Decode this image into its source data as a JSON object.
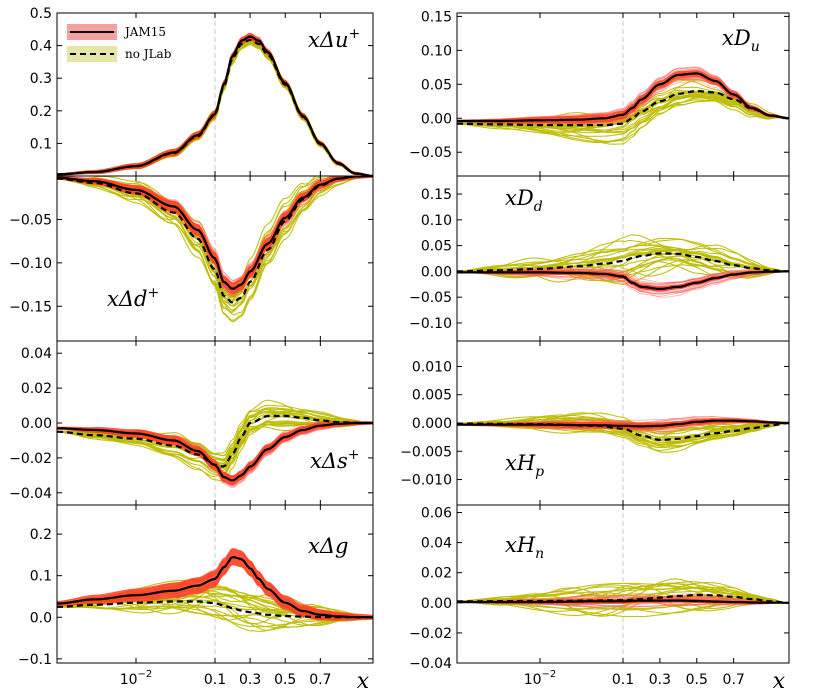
{
  "chart_data": {
    "type": "line",
    "x_axis": {
      "label": "x",
      "scale": "log-linear (log below 0.1, linear above)",
      "range": [
        0.001,
        1.0
      ],
      "ticks": [
        {
          "value": 0.01,
          "base": "10",
          "exponent": "−2"
        },
        {
          "value": 0.1,
          "label": "0.1"
        },
        {
          "value": 0.3,
          "label": "0.3"
        },
        {
          "value": 0.5,
          "label": "0.5"
        },
        {
          "value": 0.7,
          "label": "0.7"
        }
      ],
      "reference_line": 0.1
    },
    "legend": {
      "placement": "top-left of first panel",
      "entries": [
        {
          "label": "JAM15",
          "line_color": "#000000",
          "line_style": "solid",
          "band_color": "#f4a0a0"
        },
        {
          "label": "no JLab",
          "line_color": "#000000",
          "line_style": "dashed",
          "band_color": "#e6e6a6"
        }
      ]
    },
    "colors": {
      "jam15_replicas": "#ff5a5a",
      "jam15_band": "#ff4020",
      "nojlab_replicas": "#bbbb00"
    },
    "panels": [
      {
        "label": {
          "base": "xΔu",
          "sup": "+"
        },
        "column": 0,
        "row": 0,
        "ylim": [
          0.0,
          0.5
        ],
        "yticks": [
          {
            "v": 0.1,
            "t": "0.1"
          },
          {
            "v": 0.2,
            "t": "0.2"
          },
          {
            "v": 0.3,
            "t": "0.3"
          },
          {
            "v": 0.4,
            "t": "0.4"
          },
          {
            "v": 0.5,
            "t": "0.5"
          }
        ],
        "series": [
          {
            "name": "JAM15",
            "style": "solid",
            "x": [
              0.001,
              0.003,
              0.01,
              0.03,
              0.06,
              0.1,
              0.15,
              0.2,
              0.25,
              0.3,
              0.35,
              0.4,
              0.5,
              0.6,
              0.7,
              0.8,
              0.9,
              1.0
            ],
            "y": [
              0.005,
              0.012,
              0.03,
              0.072,
              0.125,
              0.19,
              0.28,
              0.37,
              0.415,
              0.428,
              0.415,
              0.38,
              0.285,
              0.185,
              0.1,
              0.04,
              0.008,
              0.0
            ]
          },
          {
            "name": "no JLab",
            "style": "dashed",
            "x": [
              0.001,
              0.003,
              0.01,
              0.03,
              0.06,
              0.1,
              0.15,
              0.2,
              0.25,
              0.3,
              0.35,
              0.4,
              0.5,
              0.6,
              0.7,
              0.8,
              0.9,
              1.0
            ],
            "y": [
              0.005,
              0.012,
              0.03,
              0.07,
              0.122,
              0.187,
              0.275,
              0.36,
              0.405,
              0.418,
              0.405,
              0.372,
              0.28,
              0.182,
              0.098,
              0.038,
              0.007,
              0.0
            ]
          }
        ],
        "band_halfwidth": 0.012,
        "replica_spread": 0.03
      },
      {
        "label": {
          "base": "xΔd",
          "sup": "+"
        },
        "column": 0,
        "row": 1,
        "ylim": [
          -0.19,
          0.0
        ],
        "yticks": [
          {
            "v": -0.05,
            "t": "−0.05"
          },
          {
            "v": -0.1,
            "t": "−0.10"
          },
          {
            "v": -0.15,
            "t": "−0.15"
          }
        ],
        "series": [
          {
            "name": "JAM15",
            "style": "solid",
            "x": [
              0.001,
              0.003,
              0.01,
              0.03,
              0.06,
              0.1,
              0.15,
              0.2,
              0.25,
              0.3,
              0.4,
              0.5,
              0.6,
              0.7,
              0.8,
              0.9,
              1.0
            ],
            "y": [
              -0.002,
              -0.006,
              -0.016,
              -0.035,
              -0.062,
              -0.095,
              -0.122,
              -0.13,
              -0.125,
              -0.11,
              -0.078,
              -0.048,
              -0.025,
              -0.01,
              -0.003,
              -0.0005,
              0.0
            ]
          },
          {
            "name": "no JLab",
            "style": "dashed",
            "x": [
              0.001,
              0.003,
              0.01,
              0.03,
              0.06,
              0.1,
              0.15,
              0.2,
              0.25,
              0.3,
              0.4,
              0.5,
              0.6,
              0.7,
              0.8,
              0.9,
              1.0
            ],
            "y": [
              -0.003,
              -0.008,
              -0.02,
              -0.042,
              -0.072,
              -0.108,
              -0.138,
              -0.146,
              -0.14,
              -0.122,
              -0.085,
              -0.052,
              -0.027,
              -0.011,
              -0.003,
              -0.0005,
              0.0
            ]
          }
        ],
        "band_halfwidth": 0.007,
        "replica_spread": 0.04
      },
      {
        "label": {
          "base": "xΔs",
          "sup": "+"
        },
        "column": 0,
        "row": 2,
        "ylim": [
          -0.047,
          0.047
        ],
        "yticks": [
          {
            "v": 0.04,
            "t": "0.04"
          },
          {
            "v": 0.02,
            "t": "0.02"
          },
          {
            "v": 0.0,
            "t": "0.00"
          },
          {
            "v": -0.02,
            "t": "−0.02"
          },
          {
            "v": -0.04,
            "t": "−0.04"
          }
        ],
        "series": [
          {
            "name": "JAM15",
            "style": "solid",
            "x": [
              0.001,
              0.003,
              0.01,
              0.03,
              0.06,
              0.1,
              0.15,
              0.2,
              0.25,
              0.3,
              0.4,
              0.5,
              0.6,
              0.7,
              0.8,
              0.9,
              1.0
            ],
            "y": [
              -0.003,
              -0.004,
              -0.006,
              -0.01,
              -0.016,
              -0.024,
              -0.031,
              -0.033,
              -0.03,
              -0.025,
              -0.015,
              -0.008,
              -0.004,
              -0.0015,
              -0.0005,
              -0.0001,
              0.0
            ]
          },
          {
            "name": "no JLab",
            "style": "dashed",
            "x": [
              0.001,
              0.003,
              0.01,
              0.03,
              0.06,
              0.1,
              0.15,
              0.2,
              0.25,
              0.3,
              0.4,
              0.5,
              0.6,
              0.7,
              0.8,
              0.9,
              1.0
            ],
            "y": [
              -0.005,
              -0.007,
              -0.009,
              -0.013,
              -0.018,
              -0.024,
              -0.025,
              -0.018,
              -0.008,
              0.0,
              0.004,
              0.004,
              0.003,
              0.0015,
              0.0005,
              0.0001,
              0.0
            ]
          }
        ],
        "band_halfwidth": 0.003,
        "replica_spread": 0.014
      },
      {
        "label": {
          "base": "xΔg",
          "sup": ""
        },
        "column": 0,
        "row": 3,
        "ylim": [
          -0.11,
          0.27
        ],
        "yticks": [
          {
            "v": 0.2,
            "t": "0.2"
          },
          {
            "v": 0.1,
            "t": "0.1"
          },
          {
            "v": 0.0,
            "t": "0.0"
          },
          {
            "v": -0.1,
            "t": "−0.1"
          }
        ],
        "series": [
          {
            "name": "JAM15",
            "style": "solid",
            "x": [
              0.001,
              0.003,
              0.01,
              0.03,
              0.06,
              0.1,
              0.15,
              0.2,
              0.25,
              0.3,
              0.35,
              0.4,
              0.5,
              0.6,
              0.7,
              0.8,
              0.9,
              1.0
            ],
            "y": [
              0.033,
              0.043,
              0.053,
              0.064,
              0.076,
              0.092,
              0.12,
              0.145,
              0.14,
              0.118,
              0.092,
              0.068,
              0.035,
              0.015,
              0.006,
              0.002,
              0.0005,
              0.0
            ]
          },
          {
            "name": "no JLab",
            "style": "dashed",
            "x": [
              0.001,
              0.003,
              0.01,
              0.03,
              0.06,
              0.1,
              0.15,
              0.2,
              0.25,
              0.3,
              0.4,
              0.5,
              0.6,
              0.7,
              0.8,
              0.9,
              1.0
            ],
            "y": [
              0.025,
              0.03,
              0.035,
              0.038,
              0.038,
              0.034,
              0.028,
              0.022,
              0.016,
              0.012,
              0.006,
              0.003,
              0.0015,
              0.0005,
              0.0002,
              0.0,
              0.0
            ]
          }
        ],
        "band_halfwidth": 0.02,
        "replica_spread": 0.08
      },
      {
        "label": {
          "base": "xD",
          "sub": "u"
        },
        "column": 1,
        "row": 0,
        "ylim": [
          -0.085,
          0.155
        ],
        "yticks": [
          {
            "v": 0.15,
            "t": "0.15"
          },
          {
            "v": 0.1,
            "t": "0.10"
          },
          {
            "v": 0.05,
            "t": "0.05"
          },
          {
            "v": 0.0,
            "t": "0.00"
          },
          {
            "v": -0.05,
            "t": "−0.05"
          }
        ],
        "series": [
          {
            "name": "JAM15",
            "style": "solid",
            "x": [
              0.001,
              0.003,
              0.01,
              0.03,
              0.06,
              0.1,
              0.15,
              0.2,
              0.3,
              0.4,
              0.5,
              0.6,
              0.7,
              0.8,
              0.9,
              1.0
            ],
            "y": [
              -0.004,
              -0.004,
              -0.003,
              -0.002,
              0.0,
              0.005,
              0.015,
              0.028,
              0.05,
              0.064,
              0.066,
              0.055,
              0.035,
              0.015,
              0.004,
              0.0
            ]
          },
          {
            "name": "no JLab",
            "style": "dashed",
            "x": [
              0.001,
              0.003,
              0.01,
              0.03,
              0.06,
              0.1,
              0.15,
              0.2,
              0.3,
              0.4,
              0.5,
              0.6,
              0.7,
              0.8,
              0.9,
              1.0
            ],
            "y": [
              -0.008,
              -0.009,
              -0.01,
              -0.01,
              -0.01,
              -0.008,
              0.0,
              0.01,
              0.025,
              0.036,
              0.04,
              0.038,
              0.028,
              0.014,
              0.004,
              0.0
            ]
          }
        ],
        "band_halfwidth": 0.006,
        "replica_spread": 0.04
      },
      {
        "label": {
          "base": "xD",
          "sub": "d"
        },
        "column": 1,
        "row": 1,
        "ylim": [
          -0.135,
          0.185
        ],
        "yticks": [
          {
            "v": 0.15,
            "t": "0.15"
          },
          {
            "v": 0.1,
            "t": "0.10"
          },
          {
            "v": 0.05,
            "t": "0.05"
          },
          {
            "v": 0.0,
            "t": "0.00"
          },
          {
            "v": -0.05,
            "t": "−0.05"
          },
          {
            "v": -0.1,
            "t": "−0.10"
          }
        ],
        "series": [
          {
            "name": "JAM15",
            "style": "solid",
            "x": [
              0.001,
              0.003,
              0.01,
              0.03,
              0.06,
              0.1,
              0.15,
              0.2,
              0.3,
              0.4,
              0.5,
              0.6,
              0.7,
              0.8,
              0.9,
              1.0
            ],
            "y": [
              -0.002,
              -0.002,
              -0.002,
              -0.003,
              -0.005,
              -0.01,
              -0.022,
              -0.03,
              -0.034,
              -0.03,
              -0.022,
              -0.013,
              -0.006,
              -0.002,
              -0.0005,
              0.0
            ]
          },
          {
            "name": "no JLab",
            "style": "dashed",
            "x": [
              0.001,
              0.003,
              0.01,
              0.03,
              0.06,
              0.1,
              0.15,
              0.2,
              0.3,
              0.4,
              0.5,
              0.6,
              0.7,
              0.8,
              0.9,
              1.0
            ],
            "y": [
              0.0,
              0.002,
              0.005,
              0.01,
              0.015,
              0.02,
              0.026,
              0.03,
              0.035,
              0.034,
              0.028,
              0.02,
              0.012,
              0.006,
              0.002,
              0.0
            ]
          }
        ],
        "band_halfwidth": 0.005,
        "replica_spread": 0.06
      },
      {
        "label": {
          "base": "xH",
          "sub": "p"
        },
        "column": 1,
        "row": 2,
        "ylim": [
          -0.0145,
          0.0145
        ],
        "yticks": [
          {
            "v": 0.01,
            "t": "0.010"
          },
          {
            "v": 0.005,
            "t": "0.005"
          },
          {
            "v": 0.0,
            "t": "0.000"
          },
          {
            "v": -0.005,
            "t": "−0.005"
          },
          {
            "v": -0.01,
            "t": "−0.010"
          }
        ],
        "series": [
          {
            "name": "JAM15",
            "style": "solid",
            "x": [
              0.001,
              0.01,
              0.05,
              0.1,
              0.2,
              0.3,
              0.4,
              0.5,
              0.6,
              0.7,
              0.8,
              0.9,
              1.0
            ],
            "y": [
              -0.0003,
              -0.0003,
              -0.0004,
              -0.0005,
              -0.0006,
              -0.0005,
              -0.0002,
              0.0002,
              0.0004,
              0.0004,
              0.0003,
              0.0001,
              0.0
            ]
          },
          {
            "name": "no JLab",
            "style": "dashed",
            "x": [
              0.001,
              0.01,
              0.05,
              0.1,
              0.2,
              0.3,
              0.4,
              0.5,
              0.6,
              0.7,
              0.8,
              0.9,
              1.0
            ],
            "y": [
              -0.0001,
              -0.0002,
              -0.0005,
              -0.001,
              -0.0022,
              -0.003,
              -0.0028,
              -0.0023,
              -0.0018,
              -0.0014,
              -0.0009,
              -0.0004,
              0.0
            ]
          }
        ],
        "band_halfwidth": 0.0006,
        "replica_spread": 0.004
      },
      {
        "label": {
          "base": "xH",
          "sub": "n"
        },
        "column": 1,
        "row": 3,
        "ylim": [
          -0.04,
          0.065
        ],
        "yticks": [
          {
            "v": 0.06,
            "t": "0.06"
          },
          {
            "v": 0.04,
            "t": "0.04"
          },
          {
            "v": 0.02,
            "t": "0.02"
          },
          {
            "v": 0.0,
            "t": "0.00"
          },
          {
            "v": -0.02,
            "t": "−0.02"
          },
          {
            "v": -0.04,
            "t": "−0.04"
          }
        ],
        "series": [
          {
            "name": "JAM15",
            "style": "solid",
            "x": [
              0.001,
              0.01,
              0.05,
              0.1,
              0.2,
              0.3,
              0.4,
              0.5,
              0.6,
              0.7,
              0.8,
              0.9,
              1.0
            ],
            "y": [
              0.0005,
              0.0005,
              0.001,
              0.001,
              0.0015,
              0.0015,
              0.0015,
              0.0012,
              0.0008,
              0.0005,
              0.0002,
              0.0001,
              0.0
            ]
          },
          {
            "name": "no JLab",
            "style": "dashed",
            "x": [
              0.001,
              0.01,
              0.05,
              0.1,
              0.2,
              0.3,
              0.4,
              0.5,
              0.6,
              0.7,
              0.8,
              0.9,
              1.0
            ],
            "y": [
              0.001,
              0.0012,
              0.0015,
              0.0018,
              0.0025,
              0.0035,
              0.0045,
              0.0052,
              0.005,
              0.004,
              0.0025,
              0.001,
              0.0
            ]
          }
        ],
        "band_halfwidth": 0.0015,
        "replica_spread": 0.018
      }
    ]
  }
}
